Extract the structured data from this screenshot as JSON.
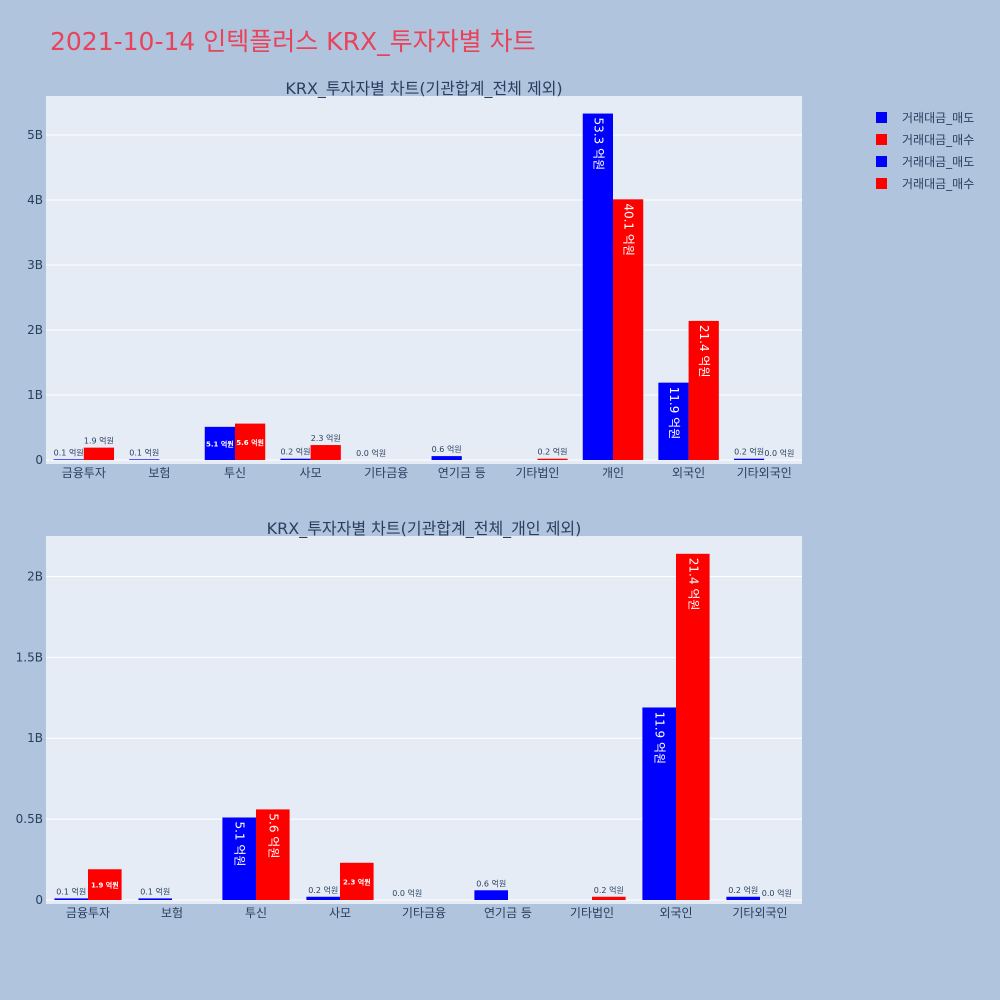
{
  "page_title": "2021-10-14 인텍플러스 KRX_투자자별 차트",
  "colors": {
    "sell": "#0000ff",
    "buy": "#ff0000"
  },
  "legend": [
    {
      "label": "거래대금_매도",
      "color": "#0000ff"
    },
    {
      "label": "거래대금_매수",
      "color": "#ff0000"
    },
    {
      "label": "거래대금_매도",
      "color": "#0000ff"
    },
    {
      "label": "거래대금_매수",
      "color": "#ff0000"
    }
  ],
  "chart_data": [
    {
      "type": "bar",
      "title": "KRX_투자자별 차트(기관합계_전체 제외)",
      "categories": [
        "금융투자",
        "보험",
        "투신",
        "사모",
        "기타금융",
        "연기금 등",
        "기타법인",
        "개인",
        "외국인",
        "기타외국인"
      ],
      "series": [
        {
          "name": "거래대금_매도",
          "color": "#0000ff",
          "values": [
            0.01,
            0.01,
            0.51,
            0.02,
            0.0,
            0.06,
            0.0,
            5.33,
            1.19,
            0.02
          ],
          "labels": [
            "0.1 억원",
            "0.1 억원",
            "5.1 억원",
            "0.2 억원",
            "0.0 억원",
            "0.6 억원",
            "",
            "53.3 억원",
            "11.9 억원",
            "0.2 억원"
          ]
        },
        {
          "name": "거래대금_매수",
          "color": "#ff0000",
          "values": [
            0.19,
            0.0,
            0.56,
            0.23,
            0.0,
            0.0,
            0.02,
            4.01,
            2.14,
            0.0
          ],
          "labels": [
            "1.9 억원",
            "",
            "5.6 억원",
            "2.3 억원",
            "",
            "",
            "0.2 억원",
            "40.1 억원",
            "21.4 억원",
            "0.0 억원"
          ]
        }
      ],
      "y_ticks": [
        0,
        1,
        2,
        3,
        4,
        5
      ],
      "y_tick_labels": [
        "0",
        "1B",
        "2B",
        "3B",
        "4B",
        "5B"
      ],
      "ylim": [
        0,
        5.6
      ]
    },
    {
      "type": "bar",
      "title": "KRX_투자자별 차트(기관합계_전체_개인 제외)",
      "categories": [
        "금융투자",
        "보험",
        "투신",
        "사모",
        "기타금융",
        "연기금 등",
        "기타법인",
        "외국인",
        "기타외국인"
      ],
      "series": [
        {
          "name": "거래대금_매도",
          "color": "#0000ff",
          "values": [
            0.01,
            0.01,
            0.51,
            0.02,
            0.0,
            0.06,
            0.0,
            1.19,
            0.02
          ],
          "labels": [
            "0.1 억원",
            "0.1 억원",
            "5.1 억원",
            "0.2 억원",
            "0.0 억원",
            "0.6 억원",
            "",
            "11.9 억원",
            "0.2 억원"
          ]
        },
        {
          "name": "거래대금_매수",
          "color": "#ff0000",
          "values": [
            0.19,
            0.0,
            0.56,
            0.23,
            0.0,
            0.0,
            0.02,
            2.14,
            0.0
          ],
          "labels": [
            "1.9 억원",
            "",
            "5.6 억원",
            "2.3 억원",
            "",
            "",
            "0.2 억원",
            "21.4 억원",
            "0.0 억원"
          ]
        }
      ],
      "y_ticks": [
        0,
        0.5,
        1,
        1.5,
        2
      ],
      "y_tick_labels": [
        "0",
        "0.5B",
        "1B",
        "1.5B",
        "2B"
      ],
      "ylim": [
        0,
        2.25
      ]
    }
  ]
}
